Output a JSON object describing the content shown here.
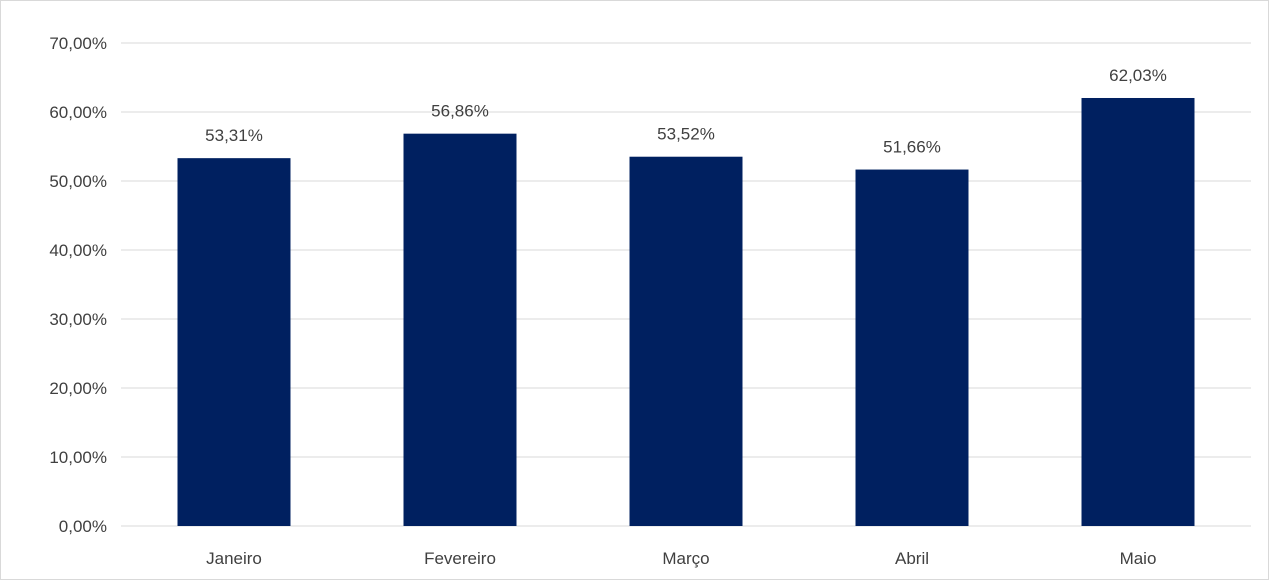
{
  "chart_data": {
    "type": "bar",
    "categories": [
      "Janeiro",
      "Fevereiro",
      "Março",
      "Abril",
      "Maio"
    ],
    "values": [
      53.31,
      56.86,
      53.52,
      51.66,
      62.03
    ],
    "data_labels": [
      "53,31%",
      "56,86%",
      "53,52%",
      "51,66%",
      "62,03%"
    ],
    "y_ticks": [
      "0,00%",
      "10,00%",
      "20,00%",
      "30,00%",
      "40,00%",
      "50,00%",
      "60,00%",
      "70,00%"
    ],
    "ylim": [
      0,
      70
    ],
    "y_step": 10,
    "grid": true,
    "legend": "none",
    "bar_color": "#002060",
    "title": "",
    "xlabel": "",
    "ylabel": ""
  }
}
